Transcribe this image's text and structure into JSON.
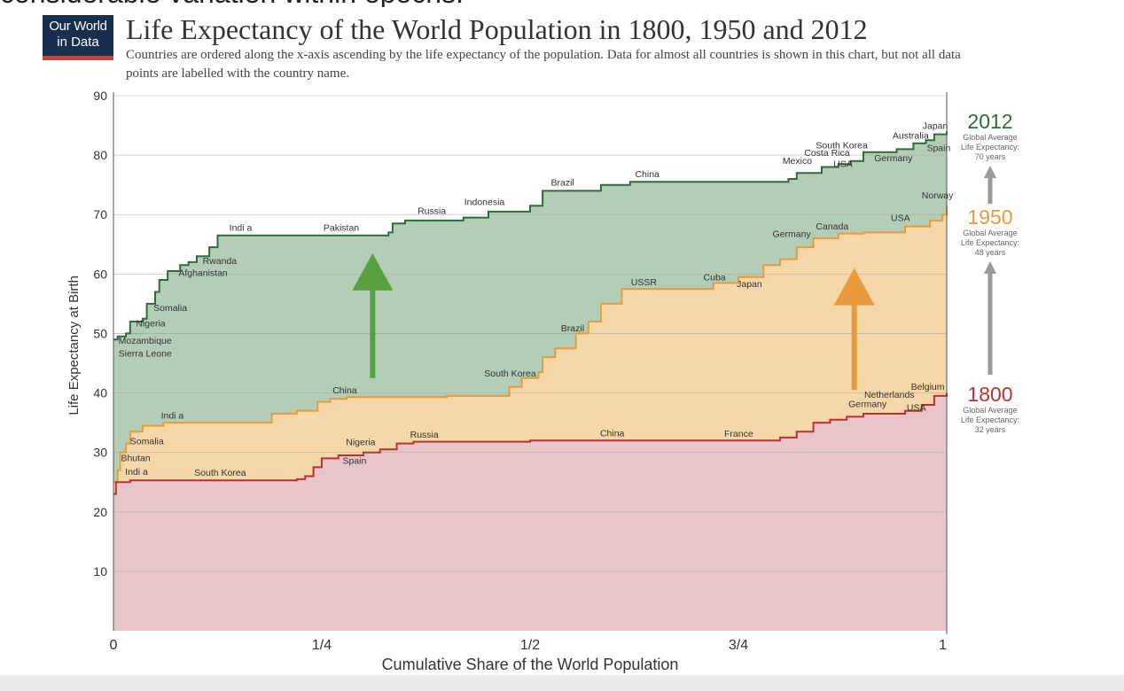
{
  "page_heading": "considerable variation within epochs.",
  "logo": {
    "line1": "Our World",
    "line2": "in Data"
  },
  "chart_data": {
    "type": "area",
    "title": "Life Expectancy of the World Population in 1800, 1950 and 2012",
    "subtitle": "Countries are ordered along the x-axis ascending by the life expectancy of the population. Data for almost all countries is shown in this chart, but not all data points are labelled with the country name.",
    "xlabel": "Cumulative Share of the World Population",
    "ylabel": "Life Expectancy at Birth",
    "xlim": [
      0,
      1
    ],
    "ylim": [
      0,
      90
    ],
    "yticks": [
      10,
      20,
      30,
      40,
      50,
      60,
      70,
      80,
      90
    ],
    "xticks": [
      {
        "v": 0,
        "label": "0"
      },
      {
        "v": 0.25,
        "label": "1/4"
      },
      {
        "v": 0.5,
        "label": "1/2"
      },
      {
        "v": 0.75,
        "label": "3/4"
      },
      {
        "v": 1,
        "label": "1"
      }
    ],
    "series": [
      {
        "name": "2012",
        "color": "#2e6b3a",
        "fill": "#b3cdb6",
        "points": [
          [
            0,
            49
          ],
          [
            0.005,
            49.5
          ],
          [
            0.015,
            50
          ],
          [
            0.02,
            52
          ],
          [
            0.035,
            52.5
          ],
          [
            0.04,
            55
          ],
          [
            0.05,
            57
          ],
          [
            0.055,
            59
          ],
          [
            0.065,
            60.5
          ],
          [
            0.08,
            61.5
          ],
          [
            0.09,
            62
          ],
          [
            0.1,
            63
          ],
          [
            0.115,
            64.5
          ],
          [
            0.125,
            66.5
          ],
          [
            0.155,
            66.5
          ],
          [
            0.27,
            66.5
          ],
          [
            0.33,
            67
          ],
          [
            0.335,
            68.5
          ],
          [
            0.35,
            69
          ],
          [
            0.42,
            69.5
          ],
          [
            0.45,
            70.5
          ],
          [
            0.5,
            71.5
          ],
          [
            0.515,
            74
          ],
          [
            0.56,
            74
          ],
          [
            0.585,
            75
          ],
          [
            0.62,
            75.5
          ],
          [
            0.67,
            75.5
          ],
          [
            0.75,
            75.5
          ],
          [
            0.8,
            75.5
          ],
          [
            0.81,
            76
          ],
          [
            0.82,
            77
          ],
          [
            0.835,
            77
          ],
          [
            0.85,
            78
          ],
          [
            0.87,
            78.5
          ],
          [
            0.885,
            79
          ],
          [
            0.9,
            80.5
          ],
          [
            0.94,
            81
          ],
          [
            0.96,
            82
          ],
          [
            0.975,
            82.5
          ],
          [
            0.985,
            83.5
          ],
          [
            1,
            84
          ]
        ]
      },
      {
        "name": "1950",
        "color": "#e89a3c",
        "fill": "#f6d7a9",
        "points": [
          [
            0,
            25
          ],
          [
            0.005,
            27
          ],
          [
            0.008,
            30
          ],
          [
            0.015,
            31.5
          ],
          [
            0.02,
            33.5
          ],
          [
            0.035,
            34.5
          ],
          [
            0.06,
            35
          ],
          [
            0.185,
            35
          ],
          [
            0.19,
            36.5
          ],
          [
            0.22,
            37
          ],
          [
            0.24,
            37
          ],
          [
            0.245,
            38.5
          ],
          [
            0.26,
            39
          ],
          [
            0.28,
            39.3
          ],
          [
            0.4,
            39.5
          ],
          [
            0.465,
            39.5
          ],
          [
            0.475,
            41
          ],
          [
            0.49,
            42.5
          ],
          [
            0.51,
            43.5
          ],
          [
            0.515,
            46
          ],
          [
            0.53,
            47.5
          ],
          [
            0.555,
            50
          ],
          [
            0.57,
            52
          ],
          [
            0.585,
            55
          ],
          [
            0.61,
            57.5
          ],
          [
            0.67,
            57.5
          ],
          [
            0.72,
            58.5
          ],
          [
            0.75,
            59.5
          ],
          [
            0.78,
            61.5
          ],
          [
            0.8,
            62.5
          ],
          [
            0.82,
            64.5
          ],
          [
            0.84,
            66
          ],
          [
            0.87,
            66.8
          ],
          [
            0.9,
            67
          ],
          [
            0.95,
            68
          ],
          [
            0.98,
            69
          ],
          [
            0.995,
            70
          ],
          [
            1,
            71.5
          ]
        ]
      },
      {
        "name": "1800",
        "color": "#b83232",
        "fill": "#e8c5c8",
        "points": [
          [
            0,
            23
          ],
          [
            0.003,
            25
          ],
          [
            0.02,
            25.3
          ],
          [
            0.15,
            25.3
          ],
          [
            0.22,
            25.5
          ],
          [
            0.23,
            26
          ],
          [
            0.24,
            27.5
          ],
          [
            0.25,
            29
          ],
          [
            0.27,
            29.5
          ],
          [
            0.3,
            30
          ],
          [
            0.32,
            30.5
          ],
          [
            0.34,
            31.5
          ],
          [
            0.36,
            31.8
          ],
          [
            0.5,
            32
          ],
          [
            0.6,
            32
          ],
          [
            0.75,
            32
          ],
          [
            0.8,
            32.5
          ],
          [
            0.82,
            33.5
          ],
          [
            0.84,
            35
          ],
          [
            0.86,
            35.5
          ],
          [
            0.88,
            36
          ],
          [
            0.9,
            36.5
          ],
          [
            0.95,
            37
          ],
          [
            0.97,
            38
          ],
          [
            0.985,
            39.5
          ],
          [
            1,
            40
          ]
        ]
      }
    ],
    "country_labels": {
      "s2012": [
        {
          "text": "Mozambique",
          "x": 0.006,
          "y": 48.3
        },
        {
          "text": "Sierra Leone",
          "x": 0.006,
          "y": 46.1
        },
        {
          "text": "Nigeria",
          "x": 0.027,
          "y": 51.2
        },
        {
          "text": "Somalia",
          "x": 0.048,
          "y": 53.8
        },
        {
          "text": "Afghanistan",
          "x": 0.078,
          "y": 59.7
        },
        {
          "text": "Rwanda",
          "x": 0.107,
          "y": 61.7
        },
        {
          "text": "Indi a",
          "x": 0.139,
          "y": 67.3
        },
        {
          "text": "Pakistan",
          "x": 0.252,
          "y": 67.3
        },
        {
          "text": "Russia",
          "x": 0.365,
          "y": 70.1
        },
        {
          "text": "Indonesia",
          "x": 0.421,
          "y": 71.6
        },
        {
          "text": "Brazil",
          "x": 0.525,
          "y": 74.9
        },
        {
          "text": "China",
          "x": 0.626,
          "y": 76.3
        },
        {
          "text": "Mexico",
          "x": 0.803,
          "y": 78.5
        },
        {
          "text": "South Korea",
          "x": 0.843,
          "y": 81.1
        },
        {
          "text": "Costa Rica",
          "x": 0.829,
          "y": 79.9
        },
        {
          "text": "USA",
          "x": 0.864,
          "y": 78
        },
        {
          "text": "Australia",
          "x": 0.935,
          "y": 82.8
        },
        {
          "text": "Japan",
          "x": 0.971,
          "y": 84.4
        },
        {
          "text": "Spain",
          "x": 0.976,
          "y": 80.7
        },
        {
          "text": "Germany",
          "x": 0.913,
          "y": 79
        },
        {
          "text": "Norway",
          "x": 0.97,
          "y": 72.7
        }
      ],
      "s1950": [
        {
          "text": "Bhutan",
          "x": 0.009,
          "y": 28.5
        },
        {
          "text": "Indi a",
          "x": 0.014,
          "y": 26.2
        },
        {
          "text": "Somalia",
          "x": 0.02,
          "y": 31.4
        },
        {
          "text": "Indi a",
          "x": 0.057,
          "y": 35.7
        },
        {
          "text": "China",
          "x": 0.263,
          "y": 39.9
        },
        {
          "text": "South Korea",
          "x": 0.445,
          "y": 42.8
        },
        {
          "text": "Brazil",
          "x": 0.537,
          "y": 50.4
        },
        {
          "text": "USSR",
          "x": 0.621,
          "y": 58.1
        },
        {
          "text": "Cuba",
          "x": 0.708,
          "y": 58.9
        },
        {
          "text": "Japan",
          "x": 0.748,
          "y": 57.8
        },
        {
          "text": "Germany",
          "x": 0.791,
          "y": 66.2
        },
        {
          "text": "Canada",
          "x": 0.843,
          "y": 67.5
        },
        {
          "text": "USA",
          "x": 0.933,
          "y": 68.9
        }
      ],
      "s1800": [
        {
          "text": "South Korea",
          "x": 0.097,
          "y": 26.1
        },
        {
          "text": "Nigeria",
          "x": 0.279,
          "y": 31.2
        },
        {
          "text": "Spain",
          "x": 0.275,
          "y": 28.1
        },
        {
          "text": "Russia",
          "x": 0.356,
          "y": 32.5
        },
        {
          "text": "China",
          "x": 0.584,
          "y": 32.7
        },
        {
          "text": "France",
          "x": 0.733,
          "y": 32.6
        },
        {
          "text": "Germany",
          "x": 0.882,
          "y": 37.6
        },
        {
          "text": "Netherlands",
          "x": 0.901,
          "y": 39.2
        },
        {
          "text": "Belgium",
          "x": 0.957,
          "y": 40.5
        },
        {
          "text": "USA",
          "x": 0.952,
          "y": 37
        }
      ]
    },
    "annotations": [
      {
        "year": "2012",
        "avg_label": "Global Average",
        "le_label": "Life Expectancy:",
        "value_label": "70 years",
        "color": "#2e6b3a"
      },
      {
        "year": "1950",
        "avg_label": "Global Average",
        "le_label": "Life Expectancy:",
        "value_label": "48 years",
        "color": "#e89a3c"
      },
      {
        "year": "1800",
        "avg_label": "Global Average",
        "le_label": "Life Expectancy:",
        "value_label": "32 years",
        "color": "#b83232"
      }
    ],
    "progress_arrows": [
      {
        "name": "green",
        "color": "#5aa040",
        "x": 0.311,
        "from": 42.5,
        "to": 63.5
      },
      {
        "name": "orange",
        "color": "#e89a3c",
        "x": 0.889,
        "from": 40.5,
        "to": 61
      }
    ]
  }
}
